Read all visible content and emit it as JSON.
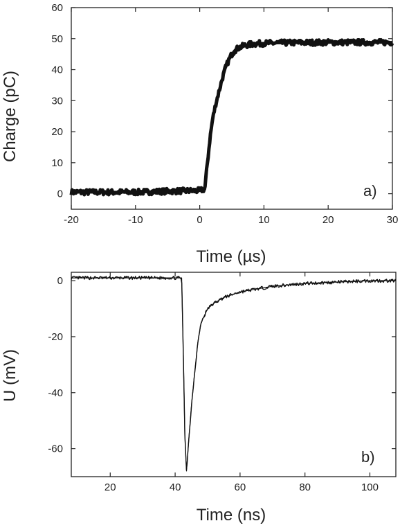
{
  "chart_data": [
    {
      "id": "a",
      "type": "line",
      "panel_label": "a)",
      "xlabel": "Time (µs)",
      "ylabel": "Charge (pC)",
      "xlim": [
        -20,
        30
      ],
      "ylim": [
        -5,
        60
      ],
      "xticks": [
        -20,
        -10,
        0,
        10,
        20,
        30
      ],
      "yticks": [
        0,
        10,
        20,
        30,
        40,
        50,
        60
      ],
      "grid": false,
      "series": [
        {
          "x": [
            -20,
            -15,
            -10,
            -5,
            0,
            0.8,
            1.2,
            1.6,
            2,
            2.5,
            3,
            3.5,
            4,
            4.5,
            5,
            5.5,
            6,
            7,
            8,
            9,
            10,
            12,
            15,
            20,
            25,
            30
          ],
          "y": [
            0.5,
            0.5,
            0.5,
            0.8,
            1.0,
            1.5,
            10,
            18,
            24,
            29,
            33,
            37,
            40.5,
            43,
            45,
            46.3,
            47,
            47.8,
            48.2,
            48.4,
            48.5,
            48.6,
            48.7,
            48.8,
            48.8,
            48.8
          ]
        }
      ]
    },
    {
      "id": "b",
      "type": "line",
      "panel_label": "b)",
      "xlabel": "Time (ns)",
      "ylabel": "U (mV)",
      "xlim": [
        8,
        108
      ],
      "ylim": [
        -70,
        3
      ],
      "xticks": [
        20,
        40,
        60,
        80,
        100
      ],
      "yticks": [
        0,
        -20,
        -40,
        -60
      ],
      "grid": false,
      "series": [
        {
          "x": [
            8,
            20,
            30,
            40,
            42,
            42.5,
            43,
            43.5,
            44,
            45,
            46,
            47,
            48,
            50,
            52,
            55,
            60,
            65,
            70,
            80,
            90,
            100,
            108
          ],
          "y": [
            1,
            1,
            1,
            1,
            1,
            -25,
            -55,
            -68,
            -60,
            -45,
            -33,
            -22,
            -15,
            -10,
            -8,
            -6,
            -4,
            -3,
            -2,
            -1,
            -0.5,
            0,
            0
          ]
        }
      ]
    }
  ]
}
